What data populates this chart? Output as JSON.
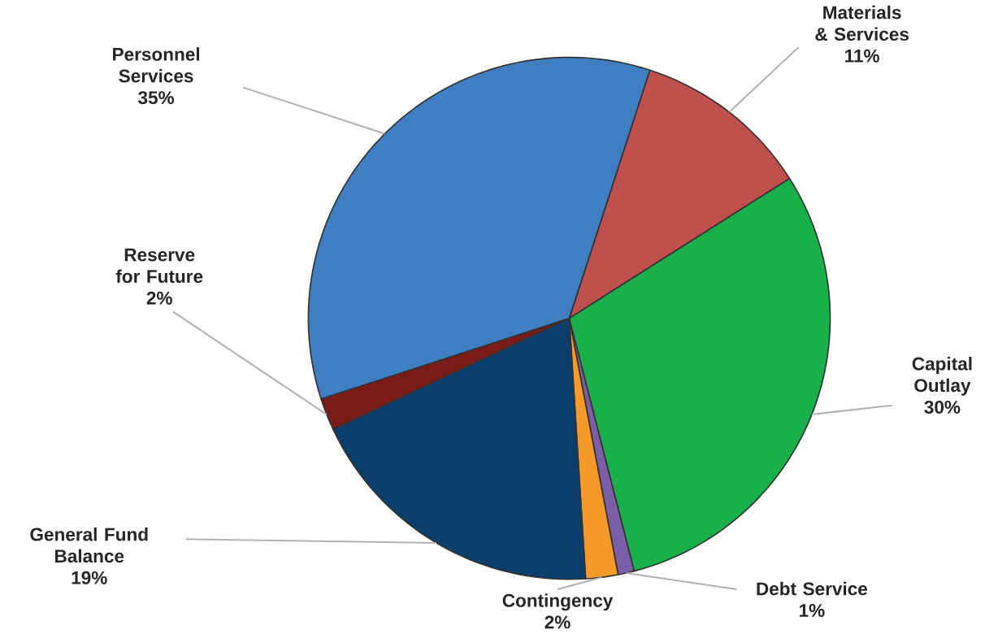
{
  "chart_data": {
    "type": "pie",
    "categories": [
      "Materials & Services",
      "Capital Outlay",
      "Debt Service",
      "Contingency",
      "General Fund Balance",
      "Reserve for Future",
      "Personnel Services"
    ],
    "values": [
      11,
      30,
      1,
      2,
      19,
      2,
      35
    ],
    "value_labels": [
      "11%",
      "30%",
      "1%",
      "2%",
      "19%",
      "2%",
      "35%"
    ],
    "colors": [
      "#c0504d",
      "#19b04c",
      "#7b5ea7",
      "#f79a2a",
      "#0c3e6b",
      "#7a1b17",
      "#3f7fc1"
    ]
  }
}
